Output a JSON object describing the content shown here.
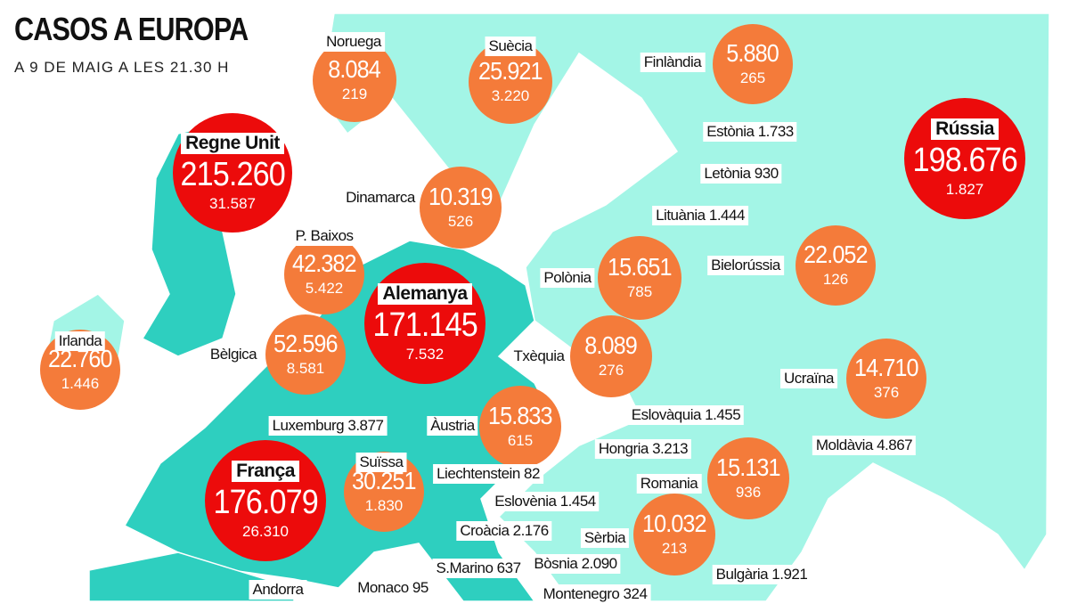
{
  "header": {
    "title": "CASOS A EUROPA",
    "subtitle": "A 9 DE MAIG A LES 21.30 H"
  },
  "colors": {
    "case_large": "#ec0b0b",
    "case_medium": "#f47b3a",
    "region_highlight": "#2ecfbf",
    "region_other": "#a3f5e6"
  },
  "bubbles": [
    {
      "name": "Noruega",
      "cases": "8.084",
      "deaths": "219",
      "color": "orange"
    },
    {
      "name": "Suècia",
      "cases": "25.921",
      "deaths": "3.220",
      "color": "orange"
    },
    {
      "name": "Finlàndia",
      "cases": "5.880",
      "deaths": "265",
      "color": "orange"
    },
    {
      "name": "Rússia",
      "cases": "198.676",
      "deaths": "1.827",
      "color": "red"
    },
    {
      "name": "Regne Unit",
      "cases": "215.260",
      "deaths": "31.587",
      "color": "red"
    },
    {
      "name": "Dinamarca",
      "cases": "10.319",
      "deaths": "526",
      "color": "orange"
    },
    {
      "name": "P. Baixos",
      "cases": "42.382",
      "deaths": "5.422",
      "color": "orange"
    },
    {
      "name": "Alemanya",
      "cases": "171.145",
      "deaths": "7.532",
      "color": "red"
    },
    {
      "name": "Polònia",
      "cases": "15.651",
      "deaths": "785",
      "color": "orange"
    },
    {
      "name": "Bielorússia",
      "cases": "22.052",
      "deaths": "126",
      "color": "orange"
    },
    {
      "name": "Irlanda",
      "cases": "22.760",
      "deaths": "1.446",
      "color": "orange"
    },
    {
      "name": "Bèlgica",
      "cases": "52.596",
      "deaths": "8.581",
      "color": "orange"
    },
    {
      "name": "Txèquia",
      "cases": "8.089",
      "deaths": "276",
      "color": "orange"
    },
    {
      "name": "Ucraïna",
      "cases": "14.710",
      "deaths": "376",
      "color": "orange"
    },
    {
      "name": "Àustria",
      "cases": "15.833",
      "deaths": "615",
      "color": "orange"
    },
    {
      "name": "Suïssa",
      "cases": "30.251",
      "deaths": "1.830",
      "color": "orange"
    },
    {
      "name": "França",
      "cases": "176.079",
      "deaths": "26.310",
      "color": "red"
    },
    {
      "name": "Romania",
      "cases": "15.131",
      "deaths": "936",
      "color": "orange"
    },
    {
      "name": "Sèrbia",
      "cases": "10.032",
      "deaths": "213",
      "color": "orange"
    }
  ],
  "labels": [
    {
      "text": "Estònia 1.733"
    },
    {
      "text": "Letònia 930"
    },
    {
      "text": "Lituània 1.444"
    },
    {
      "text": "Luxemburg 3.877"
    },
    {
      "text": "Eslovàquia 1.455"
    },
    {
      "text": "Hongria 3.213"
    },
    {
      "text": "Moldàvia 4.867"
    },
    {
      "text": "Liechtenstein 82"
    },
    {
      "text": "Eslovènia 1.454"
    },
    {
      "text": "Croàcia 2.176"
    },
    {
      "text": "S.Marino 637"
    },
    {
      "text": "Bòsnia 2.090"
    },
    {
      "text": "Bulgària 1.921"
    },
    {
      "text": "Monaco 95"
    },
    {
      "text": "Montenegro 324"
    },
    {
      "text": "Andorra"
    }
  ]
}
